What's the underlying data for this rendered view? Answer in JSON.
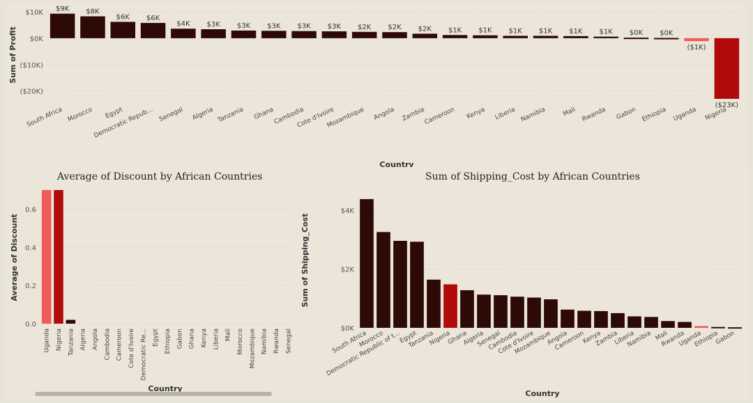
{
  "colors": {
    "bar": "#2e0a06",
    "highlight": "#b00a0a",
    "light": "#f05a5a"
  },
  "charts": {
    "profit": {
      "xlabel": "Country",
      "ylabel": "Sum of Profit"
    },
    "discount": {
      "title": "Average of Discount by African Countries",
      "xlabel": "Country",
      "ylabel": "Average of Discount"
    },
    "shipping": {
      "title": "Sum of Shipping_Cost by African Countries",
      "xlabel": "Country",
      "ylabel": "Sum of Shipping_Cost"
    }
  },
  "chart_data": [
    {
      "type": "bar",
      "xlabel": "Country",
      "ylabel": "Sum of Profit",
      "ylim": [
        -23000,
        10000
      ],
      "yticks": [
        10000,
        0,
        -10000,
        -20000
      ],
      "ytick_labels": [
        "$10K",
        "$0K",
        "($10K)",
        "($20K)"
      ],
      "grid": true,
      "categories": [
        "South Africa",
        "Morocco",
        "Egypt",
        "Democratic Repub...",
        "Senegal",
        "Algeria",
        "Tanzania",
        "Ghana",
        "Cambodia",
        "Cote d'Ivoire",
        "Mozambique",
        "Angola",
        "Zambia",
        "Cameroon",
        "Kenya",
        "Liberia",
        "Namibia",
        "Mali",
        "Rwanda",
        "Gabon",
        "Ethiopia",
        "Uganda",
        "Nigeria"
      ],
      "values": [
        9300,
        8300,
        6200,
        5800,
        3600,
        3400,
        2900,
        2800,
        2700,
        2600,
        2400,
        2300,
        1700,
        1200,
        1100,
        900,
        900,
        800,
        600,
        200,
        100,
        -1100,
        -23000
      ],
      "data_labels": [
        "$9K",
        "$8K",
        "$6K",
        "$6K",
        "$4K",
        "$3K",
        "$3K",
        "$3K",
        "$3K",
        "$3K",
        "$2K",
        "$2K",
        "$2K",
        "$1K",
        "$1K",
        "$1K",
        "$1K",
        "$1K",
        "$1K",
        "$0K",
        "$0K",
        "($1K)",
        "($23K)"
      ],
      "highlight": {
        "Uganda": "light",
        "Nigeria": "highlight"
      }
    },
    {
      "type": "bar",
      "title": "Average of Discount by African Countries",
      "xlabel": "Country",
      "ylabel": "Average of Discount",
      "ylim": [
        0,
        0.7
      ],
      "yticks": [
        0.0,
        0.2,
        0.4,
        0.6
      ],
      "ytick_labels": [
        "0.0",
        "0.2",
        "0.4",
        "0.6"
      ],
      "grid": true,
      "categories": [
        "Uganda",
        "Nigeria",
        "Tanzania",
        "Algeria",
        "Angola",
        "Cambodia",
        "Cameroon",
        "Cote d'Ivoire",
        "Democratic Re...",
        "Egypt",
        "Ethiopia",
        "Gabon",
        "Ghana",
        "Kenya",
        "Liberia",
        "Mali",
        "Morocco",
        "Mozambique",
        "Namibia",
        "Rwanda",
        "Senegal"
      ],
      "values": [
        0.7,
        0.7,
        0.02,
        0,
        0,
        0,
        0,
        0,
        0,
        0,
        0,
        0,
        0,
        0,
        0,
        0,
        0,
        0,
        0,
        0,
        0
      ],
      "highlight": {
        "Uganda": "light",
        "Nigeria": "highlight"
      }
    },
    {
      "type": "bar",
      "title": "Sum of Shipping_Cost by African Countries",
      "xlabel": "Country",
      "ylabel": "Sum of Shipping_Cost",
      "ylim": [
        0,
        4500
      ],
      "yticks": [
        0,
        2000,
        4000
      ],
      "ytick_labels": [
        "$0K",
        "$2K",
        "$4K"
      ],
      "grid": true,
      "categories": [
        "South Africa",
        "Morocco",
        "Democratic Republic of t...",
        "Egypt",
        "Tanzania",
        "Nigeria",
        "Ghana",
        "Algeria",
        "Senegal",
        "Cambodia",
        "Cote d'Ivoire",
        "Mozambique",
        "Angola",
        "Cameroon",
        "Kenya",
        "Zambia",
        "Liberia",
        "Namibia",
        "Mali",
        "Rwanda",
        "Uganda",
        "Ethiopia",
        "Gabon"
      ],
      "values": [
        4380,
        3260,
        2960,
        2930,
        1640,
        1480,
        1280,
        1130,
        1110,
        1060,
        1030,
        970,
        620,
        580,
        570,
        500,
        390,
        370,
        230,
        200,
        60,
        30,
        20
      ],
      "highlight": {
        "Uganda": "light",
        "Nigeria": "highlight"
      }
    }
  ]
}
